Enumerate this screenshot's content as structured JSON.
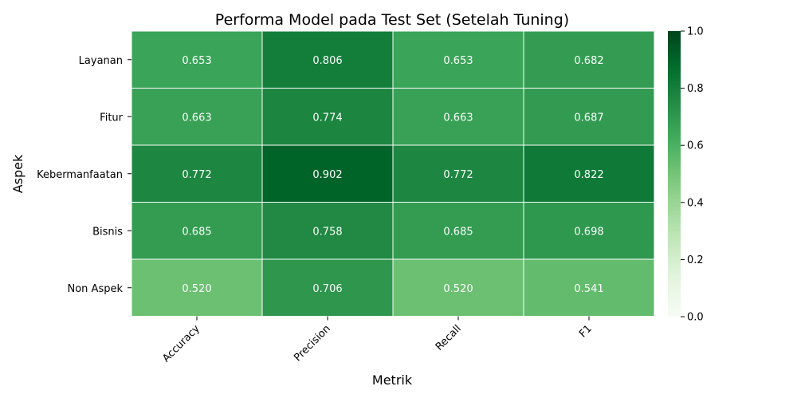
{
  "chart_data": {
    "type": "heatmap",
    "title": "Performa Model pada Test Set (Setelah Tuning)",
    "xlabel": "Metrik",
    "ylabel": "Aspek",
    "columns": [
      "Accuracy",
      "Precision",
      "Recall",
      "F1"
    ],
    "rows": [
      "Layanan",
      "Fitur",
      "Kebermanfaatan",
      "Bisnis",
      "Non Aspek"
    ],
    "values": [
      [
        0.653,
        0.806,
        0.653,
        0.682
      ],
      [
        0.663,
        0.774,
        0.663,
        0.687
      ],
      [
        0.772,
        0.902,
        0.772,
        0.822
      ],
      [
        0.685,
        0.758,
        0.685,
        0.698
      ],
      [
        0.52,
        0.706,
        0.52,
        0.541
      ]
    ],
    "color_range": [
      0,
      1
    ],
    "colormap": "Greens",
    "colorbar_ticks": [
      0.0,
      0.2,
      0.4,
      0.6,
      0.8,
      1.0
    ],
    "colorbar_tick_labels": [
      "0.0",
      "0.2",
      "0.4",
      "0.6",
      "0.8",
      "1.0"
    ]
  }
}
